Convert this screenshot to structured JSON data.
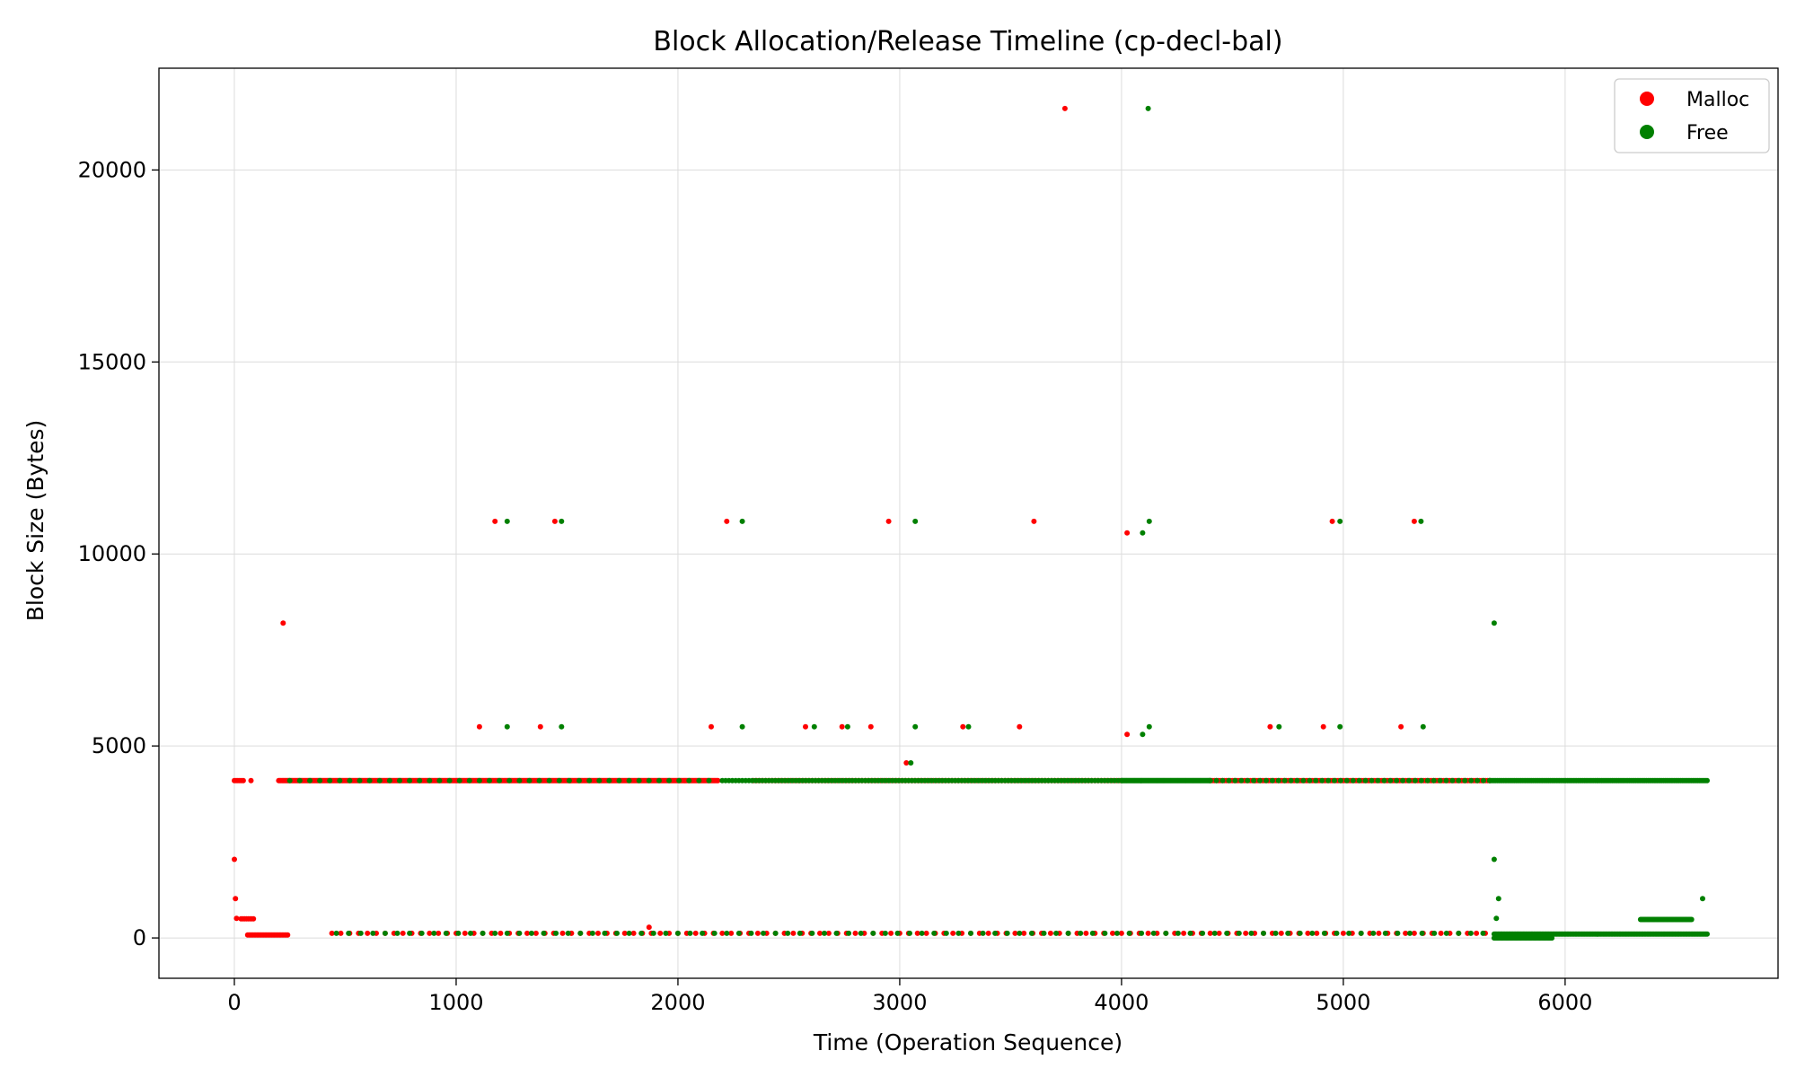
{
  "chart_data": {
    "type": "scatter",
    "title": "Block Allocation/Release Timeline (cp-decl-bal)",
    "xlabel": "Time (Operation Sequence)",
    "ylabel": "Block Size (Bytes)",
    "xlim": [
      -340,
      6960
    ],
    "ylim": [
      -1050,
      22650
    ],
    "xticks": [
      0,
      1000,
      2000,
      3000,
      4000,
      5000,
      6000
    ],
    "yticks": [
      0,
      5000,
      10000,
      15000,
      20000
    ],
    "grid": true,
    "legend_position": "top-right",
    "series": [
      {
        "name": "Malloc",
        "color": "#ff0000",
        "bands": [
          {
            "y": 4096,
            "x_start": 0,
            "x_end": 40,
            "step": 8
          },
          {
            "y": 4096,
            "x_start": 200,
            "x_end": 2180,
            "step": 5
          },
          {
            "y": 4096,
            "x_start": 2340,
            "x_end": 4000,
            "step": 14
          },
          {
            "y": 4096,
            "x_start": 4400,
            "x_end": 5660,
            "step": 9
          },
          {
            "y": 80,
            "x_start": 60,
            "x_end": 240,
            "step": 6
          },
          {
            "y": 500,
            "x_start": 30,
            "x_end": 90,
            "step": 8
          },
          {
            "y": 120,
            "x_start": 440,
            "x_end": 5660,
            "step": 40
          }
        ],
        "points": [
          {
            "x": 0,
            "y": 2048
          },
          {
            "x": 5,
            "y": 1024
          },
          {
            "x": 10,
            "y": 512
          },
          {
            "x": 75,
            "y": 4096
          },
          {
            "x": 220,
            "y": 8200
          },
          {
            "x": 1870,
            "y": 280
          },
          {
            "x": 1175,
            "y": 10850
          },
          {
            "x": 1445,
            "y": 10850
          },
          {
            "x": 2220,
            "y": 10850
          },
          {
            "x": 2950,
            "y": 10850
          },
          {
            "x": 3605,
            "y": 10850
          },
          {
            "x": 4025,
            "y": 10550
          },
          {
            "x": 4950,
            "y": 10850
          },
          {
            "x": 5320,
            "y": 10850
          },
          {
            "x": 3745,
            "y": 21600
          },
          {
            "x": 1105,
            "y": 5500
          },
          {
            "x": 1380,
            "y": 5500
          },
          {
            "x": 2150,
            "y": 5500
          },
          {
            "x": 2575,
            "y": 5500
          },
          {
            "x": 2740,
            "y": 5500
          },
          {
            "x": 2870,
            "y": 5500
          },
          {
            "x": 3285,
            "y": 5500
          },
          {
            "x": 3540,
            "y": 5500
          },
          {
            "x": 4025,
            "y": 5300
          },
          {
            "x": 4670,
            "y": 5500
          },
          {
            "x": 4910,
            "y": 5500
          },
          {
            "x": 5260,
            "y": 5500
          },
          {
            "x": 3030,
            "y": 4560
          }
        ]
      },
      {
        "name": "Free",
        "color": "#008000",
        "bands": [
          {
            "y": 4096,
            "x_start": 250,
            "x_end": 2180,
            "step": 45
          },
          {
            "y": 4096,
            "x_start": 2200,
            "x_end": 4000,
            "step": 15
          },
          {
            "y": 4096,
            "x_start": 4000,
            "x_end": 4400,
            "step": 4
          },
          {
            "y": 4096,
            "x_start": 4400,
            "x_end": 5660,
            "step": 28
          },
          {
            "y": 4096,
            "x_start": 5660,
            "x_end": 6640,
            "step": 7
          },
          {
            "y": 120,
            "x_start": 460,
            "x_end": 5660,
            "step": 55
          },
          {
            "y": 100,
            "x_start": 5680,
            "x_end": 6640,
            "step": 6
          },
          {
            "y": 0,
            "x_start": 5680,
            "x_end": 5940,
            "step": 5
          },
          {
            "y": 480,
            "x_start": 6340,
            "x_end": 6570,
            "step": 5
          }
        ],
        "points": [
          {
            "x": 5680,
            "y": 2048
          },
          {
            "x": 5700,
            "y": 1024
          },
          {
            "x": 6620,
            "y": 1024
          },
          {
            "x": 5680,
            "y": 8200
          },
          {
            "x": 5690,
            "y": 512
          },
          {
            "x": 1230,
            "y": 10850
          },
          {
            "x": 1475,
            "y": 10850
          },
          {
            "x": 2290,
            "y": 10850
          },
          {
            "x": 3070,
            "y": 10850
          },
          {
            "x": 4095,
            "y": 10550
          },
          {
            "x": 4125,
            "y": 10850
          },
          {
            "x": 4985,
            "y": 10850
          },
          {
            "x": 5350,
            "y": 10850
          },
          {
            "x": 4120,
            "y": 21600
          },
          {
            "x": 1230,
            "y": 5500
          },
          {
            "x": 1475,
            "y": 5500
          },
          {
            "x": 2290,
            "y": 5500
          },
          {
            "x": 2615,
            "y": 5500
          },
          {
            "x": 2765,
            "y": 5500
          },
          {
            "x": 3070,
            "y": 5500
          },
          {
            "x": 3310,
            "y": 5500
          },
          {
            "x": 4095,
            "y": 5300
          },
          {
            "x": 4125,
            "y": 5500
          },
          {
            "x": 4710,
            "y": 5500
          },
          {
            "x": 4985,
            "y": 5500
          },
          {
            "x": 5360,
            "y": 5500
          },
          {
            "x": 3050,
            "y": 4560
          }
        ]
      }
    ]
  }
}
